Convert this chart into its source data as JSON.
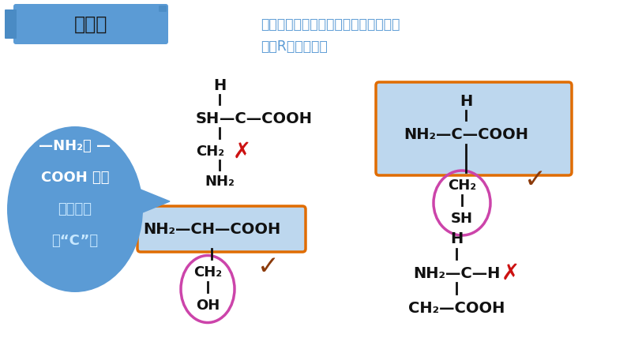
{
  "bg_color": "#ffffff",
  "title_banner_color": "#5b9bd5",
  "title_banner_text": "例题：",
  "title_banner_text_color": "#1a1a1a",
  "question_text_color": "#5b9bd5",
  "question_line1": "判断下列分子是不是氨基酸？如果是的",
  "question_line2": "话，R基是什么？",
  "bubble_color": "#5b9bd5",
  "bubble_text_lines": [
    "—NH₂与 —",
    "COOH 没有",
    "连在同一",
    "个“C”上"
  ],
  "bubble_highlight_lines": [
    "连在同一",
    "个“C”上"
  ],
  "orange_box_color": "#e06c00",
  "blue_box_color": "#bdd7ee",
  "pink_circle_color": "#cc44aa",
  "cross_color": "#cc1111",
  "check_color": "#8b3a0a"
}
